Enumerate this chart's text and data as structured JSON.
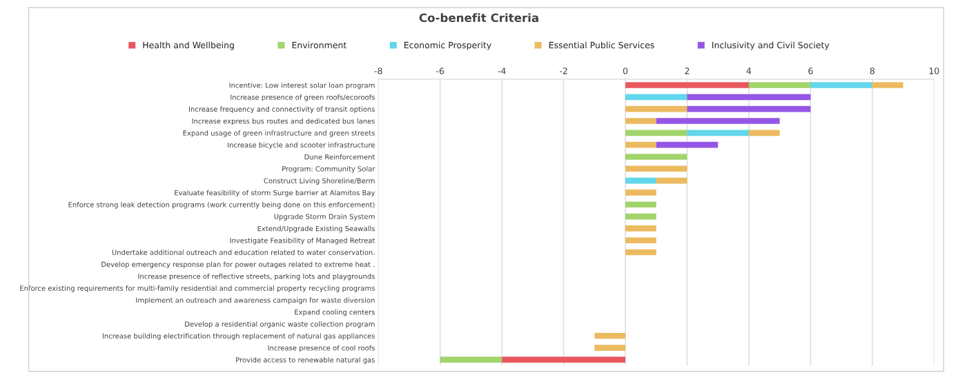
{
  "chart_data": {
    "type": "bar",
    "orientation": "horizontal",
    "stacked": true,
    "title": "Co-benefit Criteria",
    "categories": [
      "Incentive: Low interest solar loan program",
      "Increase presence of green roofs/ecoroofs",
      "Increase frequency and connectivity of transit options",
      "Increase express bus routes and dedicated bus lanes",
      "Expand usage of green infrastructure and green streets",
      "Increase bicycle and scooter infrastructure",
      "Dune Reinforcement",
      "Program: Community Solar",
      "Construct Living Shoreline/Berm",
      "Evaluate feasibility of storm Surge barrier at Alamitos Bay",
      "Enforce strong leak detection programs (work currently being done on this enforcement)",
      "Upgrade Storm Drain System",
      "Extend/Upgrade Existing Seawalls",
      "Investigate Feasibility of Managed Retreat",
      "Undertake additional outreach and education related to water conservation.",
      "Develop emergency response plan for power outages related to extreme heat .",
      "Increase presence of reflective streets, parking lots and playgrounds",
      "Enforce existing requirements for multi-family residential and commercial property recycling programs",
      "Implement an outreach and awareness campaign for waste diversion",
      "Expand cooling centers",
      "Develop a residential organic waste collection program",
      "Increase building electrification through replacement of natural gas appliances",
      "Increase presence of cool roofs",
      "Provide access to renewable natural gas"
    ],
    "series": [
      {
        "name": "Health and Wellbeing",
        "color": "#e8585e",
        "values": [
          4,
          0,
          0,
          0,
          0,
          0,
          0,
          0,
          0,
          0,
          0,
          0,
          0,
          0,
          0,
          0,
          0,
          0,
          0,
          0,
          0,
          0,
          0,
          -4
        ]
      },
      {
        "name": "Environment",
        "color": "#a2d46c",
        "values": [
          2,
          0,
          0,
          0,
          2,
          0,
          2,
          0,
          0,
          0,
          1,
          1,
          0,
          0,
          0,
          0,
          0,
          0,
          0,
          0,
          0,
          0,
          0,
          -2
        ]
      },
      {
        "name": "Economic Prosperity",
        "color": "#62d6ea",
        "values": [
          2,
          2,
          0,
          0,
          2,
          0,
          0,
          0,
          1,
          0,
          0,
          0,
          0,
          0,
          0,
          0,
          0,
          0,
          0,
          0,
          0,
          0,
          0,
          0
        ]
      },
      {
        "name": "Essential Public Services",
        "color": "#ecba60",
        "values": [
          1,
          0,
          2,
          1,
          1,
          1,
          0,
          2,
          1,
          1,
          0,
          0,
          1,
          1,
          1,
          0,
          0,
          0,
          0,
          0,
          0,
          -1,
          -1,
          0
        ]
      },
      {
        "name": "Inclusivity and Civil Society",
        "color": "#9456e6",
        "values": [
          0,
          4,
          4,
          4,
          0,
          2,
          0,
          0,
          0,
          0,
          0,
          0,
          0,
          0,
          0,
          0,
          0,
          0,
          0,
          0,
          0,
          0,
          0,
          0
        ]
      }
    ],
    "xlim": [
      -8,
      10
    ],
    "xticks": [
      -8,
      -6,
      -4,
      -2,
      0,
      2,
      4,
      6,
      8,
      10
    ],
    "grid": "x",
    "legend": "top"
  }
}
